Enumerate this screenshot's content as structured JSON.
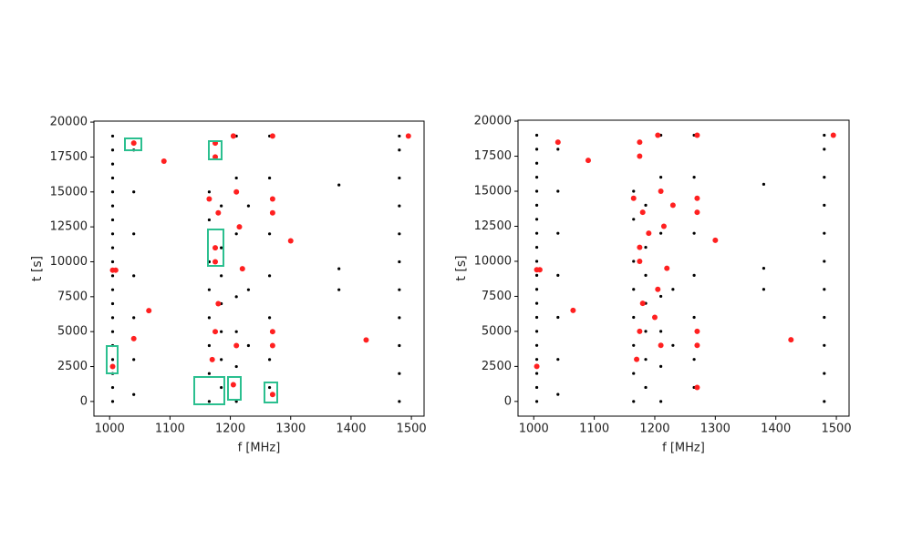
{
  "chart_data": [
    {
      "type": "scatter",
      "x_label": "f [MHz]",
      "y_label": "t [s]",
      "xlim": [
        974,
        1521
      ],
      "ylim": [
        -1050,
        20070
      ],
      "xticks": [
        1000,
        1100,
        1200,
        1300,
        1400,
        1500
      ],
      "yticks": [
        0,
        2500,
        5000,
        7500,
        10000,
        12500,
        15000,
        17500,
        20000
      ],
      "series": [
        {
          "color": "#000000",
          "x": [
            1005,
            1005,
            1005,
            1005,
            1005,
            1005,
            1005,
            1005,
            1005,
            1005,
            1005,
            1005,
            1005,
            1005,
            1005,
            1005,
            1005,
            1005,
            1005,
            1005,
            1040,
            1040,
            1040,
            1040,
            1040,
            1040,
            1040,
            1165,
            1165,
            1165,
            1165,
            1165,
            1165,
            1165,
            1165,
            1185,
            1185,
            1185,
            1185,
            1185,
            1185,
            1185,
            1210,
            1210,
            1210,
            1210,
            1210,
            1210,
            1210,
            1230,
            1230,
            1230,
            1265,
            1265,
            1265,
            1265,
            1265,
            1265,
            1265,
            1380,
            1380,
            1380,
            1480,
            1480,
            1480,
            1480,
            1480,
            1480,
            1480,
            1480,
            1480,
            1480,
            1480
          ],
          "values": [
            0,
            1000,
            2000,
            3000,
            4000,
            5000,
            6000,
            7000,
            8000,
            9000,
            10000,
            11000,
            12000,
            13000,
            14000,
            15000,
            16000,
            17000,
            18000,
            19000,
            500,
            3000,
            6000,
            9000,
            12000,
            15000,
            18000,
            0,
            2000,
            4000,
            6000,
            8000,
            10000,
            13000,
            15000,
            1000,
            3000,
            5000,
            7000,
            9000,
            11000,
            14000,
            0,
            2500,
            5000,
            7500,
            12000,
            16000,
            19000,
            4000,
            8000,
            14000,
            1000,
            3000,
            6000,
            9000,
            12000,
            16000,
            19000,
            8000,
            15500,
            9500,
            0,
            2000,
            4000,
            6000,
            8000,
            10000,
            12000,
            14000,
            16000,
            18000,
            19000
          ]
        },
        {
          "color": "#ff2020",
          "x": [
            1005,
            1010,
            1005,
            1040,
            1040,
            1065,
            1090,
            1175,
            1175,
            1165,
            1180,
            1175,
            1175,
            1180,
            1175,
            1170,
            1205,
            1210,
            1215,
            1220,
            1210,
            1205,
            1270,
            1270,
            1270,
            1270,
            1270,
            1270,
            1300,
            1425,
            1495
          ],
          "values": [
            9400,
            9400,
            2500,
            18500,
            4500,
            6500,
            17200,
            18500,
            17500,
            14500,
            13500,
            11000,
            10000,
            7000,
            5000,
            3000,
            19000,
            15000,
            12500,
            9500,
            4000,
            1200,
            19000,
            14500,
            13500,
            5000,
            4000,
            500,
            11500,
            4400,
            19000
          ]
        }
      ]
    },
    {
      "type": "scatter",
      "x_label": "f [MHz]",
      "y_label": "t [s]",
      "xlim": [
        974,
        1521
      ],
      "ylim": [
        -1050,
        20070
      ],
      "xticks": [
        1000,
        1100,
        1200,
        1300,
        1400,
        1500
      ],
      "yticks": [
        0,
        2500,
        5000,
        7500,
        10000,
        12500,
        15000,
        17500,
        20000
      ],
      "series": [
        {
          "color": "#000000",
          "x": [
            1005,
            1005,
            1005,
            1005,
            1005,
            1005,
            1005,
            1005,
            1005,
            1005,
            1005,
            1005,
            1005,
            1005,
            1005,
            1005,
            1005,
            1005,
            1005,
            1005,
            1040,
            1040,
            1040,
            1040,
            1040,
            1040,
            1040,
            1165,
            1165,
            1165,
            1165,
            1165,
            1165,
            1165,
            1165,
            1185,
            1185,
            1185,
            1185,
            1185,
            1185,
            1185,
            1210,
            1210,
            1210,
            1210,
            1210,
            1210,
            1210,
            1230,
            1230,
            1230,
            1265,
            1265,
            1265,
            1265,
            1265,
            1265,
            1265,
            1380,
            1380,
            1380,
            1480,
            1480,
            1480,
            1480,
            1480,
            1480,
            1480,
            1480,
            1480,
            1480,
            1480
          ],
          "values": [
            0,
            1000,
            2000,
            3000,
            4000,
            5000,
            6000,
            7000,
            8000,
            9000,
            10000,
            11000,
            12000,
            13000,
            14000,
            15000,
            16000,
            17000,
            18000,
            19000,
            500,
            3000,
            6000,
            9000,
            12000,
            15000,
            18000,
            0,
            2000,
            4000,
            6000,
            8000,
            10000,
            13000,
            15000,
            1000,
            3000,
            5000,
            7000,
            9000,
            11000,
            14000,
            0,
            2500,
            5000,
            7500,
            12000,
            16000,
            19000,
            4000,
            8000,
            14000,
            1000,
            3000,
            6000,
            9000,
            12000,
            16000,
            19000,
            8000,
            15500,
            9500,
            0,
            2000,
            4000,
            6000,
            8000,
            10000,
            12000,
            14000,
            16000,
            18000,
            19000
          ]
        },
        {
          "color": "#ff2020",
          "x": [
            1005,
            1010,
            1005,
            1040,
            1065,
            1090,
            1175,
            1175,
            1165,
            1180,
            1175,
            1175,
            1180,
            1175,
            1170,
            1205,
            1210,
            1215,
            1220,
            1210,
            1190,
            1205,
            1200,
            1230,
            1270,
            1270,
            1270,
            1270,
            1270,
            1270,
            1300,
            1425,
            1495
          ],
          "values": [
            9400,
            9400,
            2500,
            18500,
            6500,
            17200,
            18500,
            17500,
            14500,
            13500,
            11000,
            10000,
            7000,
            5000,
            3000,
            19000,
            15000,
            12500,
            9500,
            4000,
            12000,
            8000,
            6000,
            14000,
            19000,
            14500,
            13500,
            5000,
            4000,
            1000,
            11500,
            4400,
            19000
          ]
        }
      ]
    }
  ]
}
